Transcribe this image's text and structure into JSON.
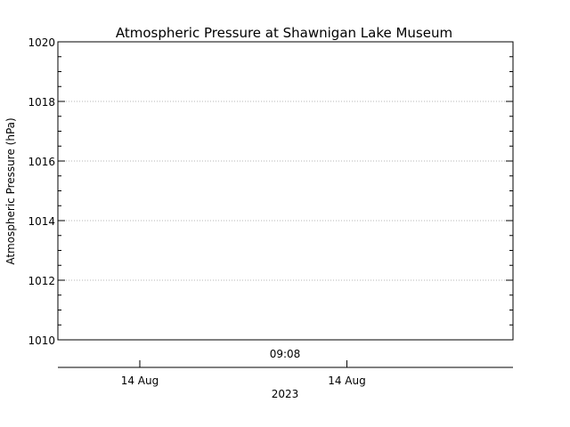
{
  "chart_data": {
    "type": "line",
    "title": "Atmospheric Pressure at Shawnigan Lake Museum",
    "ylabel": "Atmospheric Pressure (hPa)",
    "ylim": [
      1010,
      1020
    ],
    "y_ticks": [
      1010,
      1012,
      1014,
      1016,
      1018,
      1020
    ],
    "y_tick_labels": [
      "1010",
      "1012",
      "1014",
      "1016",
      "1018",
      "1020"
    ],
    "grid": true,
    "time_label": "09:08",
    "x_ticks": [
      {
        "label": "14 Aug",
        "frac": 0.18
      },
      {
        "label": "14 Aug",
        "frac": 0.635
      }
    ],
    "year_label": "2023",
    "series": []
  },
  "colors": {
    "axis": "#000000",
    "grid": "#b4b4b4",
    "background": "#ffffff"
  }
}
